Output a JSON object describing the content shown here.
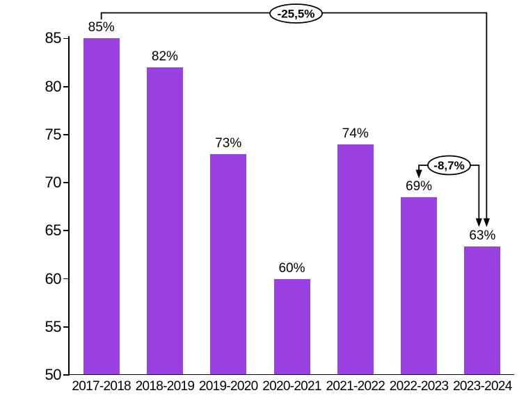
{
  "chart_data": {
    "type": "bar",
    "title": "",
    "xlabel": "",
    "ylabel": "",
    "categories": [
      "2017-2018",
      "2018-2019",
      "2019-2020",
      "2020-2021",
      "2021-2022",
      "2022-2023",
      "2023-2024"
    ],
    "values": [
      85,
      82,
      73,
      60,
      74,
      68.5,
      63.4
    ],
    "bar_labels": [
      "85%",
      "82%",
      "73%",
      "60%",
      "74%",
      "69%",
      "63%"
    ],
    "ylim": [
      50,
      85
    ],
    "yticks": [
      "50",
      "55",
      "60",
      "65",
      "70",
      "75",
      "80",
      "85"
    ],
    "grid": false,
    "legend_position": "none",
    "bar_color": "#9A41E2",
    "axis_color": "#000000",
    "annotation_color": "#000000",
    "annotations": [
      {
        "label": "-25,5%",
        "from": "2017-2018",
        "to": "2023-2024",
        "shape": "ellipse-callout"
      },
      {
        "label": "-8,7%",
        "from": "2022-2023",
        "to": "2023-2024",
        "shape": "ellipse-callout"
      }
    ]
  }
}
